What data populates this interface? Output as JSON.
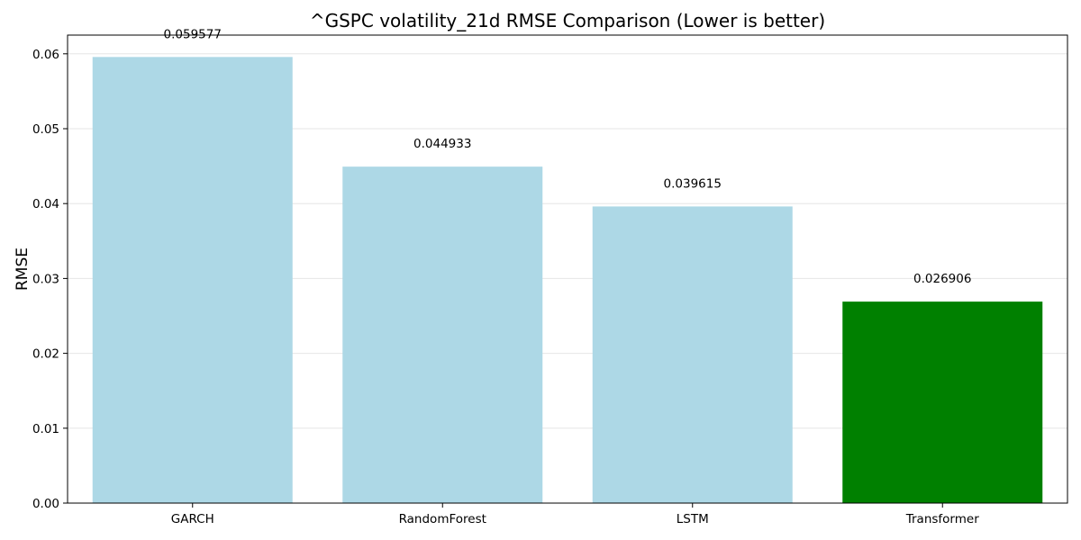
{
  "chart_data": {
    "type": "bar",
    "title": "^GSPC volatility_21d RMSE Comparison (Lower is better)",
    "xlabel": "",
    "ylabel": "RMSE",
    "categories": [
      "GARCH",
      "RandomForest",
      "LSTM",
      "Transformer"
    ],
    "values": [
      0.059577,
      0.044933,
      0.039615,
      0.026906
    ],
    "data_labels": [
      "0.059577",
      "0.044933",
      "0.039615",
      "0.026906"
    ],
    "bar_colors": [
      "#add8e6",
      "#add8e6",
      "#add8e6",
      "#008000"
    ],
    "ylim": [
      0,
      0.0625
    ],
    "yticks": [
      0.0,
      0.01,
      0.02,
      0.03,
      0.04,
      0.05,
      0.06
    ],
    "ytick_labels": [
      "0.00",
      "0.01",
      "0.02",
      "0.03",
      "0.04",
      "0.05",
      "0.06"
    ],
    "grid": "y-major",
    "grid_color": "#e6e6e6"
  }
}
